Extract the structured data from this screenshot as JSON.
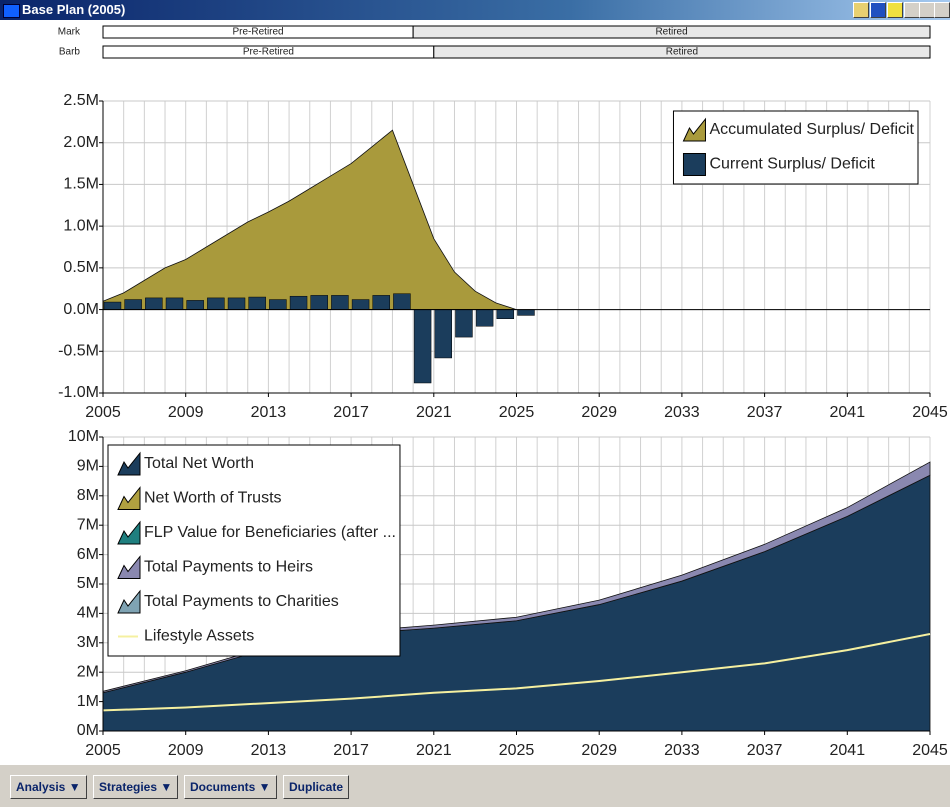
{
  "window": {
    "title": "Base Plan (2005)"
  },
  "timeline": [
    {
      "name": "Mark",
      "segments": [
        {
          "label": "Pre-Retired",
          "start": 2005,
          "end": 2020
        },
        {
          "label": "Retired",
          "start": 2020,
          "end": 2045
        }
      ]
    },
    {
      "name": "Barb",
      "segments": [
        {
          "label": "Pre-Retired",
          "start": 2005,
          "end": 2021
        },
        {
          "label": "Retired",
          "start": 2021,
          "end": 2045
        }
      ]
    }
  ],
  "chart_data": [
    {
      "type": "combo",
      "x": [
        2005,
        2006,
        2007,
        2008,
        2009,
        2010,
        2011,
        2012,
        2013,
        2014,
        2015,
        2016,
        2017,
        2018,
        2019,
        2020,
        2021,
        2022,
        2023,
        2024,
        2025
      ],
      "series": [
        {
          "name": "Accumulated Surplus/ Deficit",
          "type": "area",
          "color": "#a99a3c",
          "values": [
            0.1,
            0.2,
            0.35,
            0.5,
            0.6,
            0.75,
            0.9,
            1.05,
            1.17,
            1.3,
            1.45,
            1.6,
            1.75,
            1.95,
            2.15,
            1.5,
            0.85,
            0.45,
            0.22,
            0.08,
            0.0
          ]
        },
        {
          "name": "Current Surplus/ Deficit",
          "type": "bar",
          "color": "#1b3d5c",
          "values": [
            0.09,
            0.12,
            0.14,
            0.14,
            0.11,
            0.14,
            0.14,
            0.15,
            0.12,
            0.16,
            0.17,
            0.17,
            0.12,
            0.17,
            0.19,
            -0.88,
            -0.58,
            -0.33,
            -0.2,
            -0.11,
            -0.07
          ]
        }
      ],
      "xlim": [
        2005,
        2045
      ],
      "xticks": [
        2005,
        2009,
        2013,
        2017,
        2021,
        2025,
        2029,
        2033,
        2037,
        2041,
        2045
      ],
      "ylim": [
        -1,
        2.5
      ],
      "yticks": [
        {
          "value": -1,
          "label": "-1.0M"
        },
        {
          "value": -0.5,
          "label": "-0.5M"
        },
        {
          "value": 0,
          "label": "0.0M"
        },
        {
          "value": 0.5,
          "label": "0.5M"
        },
        {
          "value": 1,
          "label": "1.0M"
        },
        {
          "value": 1.5,
          "label": "1.5M"
        },
        {
          "value": 2,
          "label": "2.0M"
        },
        {
          "value": 2.5,
          "label": "2.5M"
        }
      ],
      "grid": true,
      "legend": "upper right"
    },
    {
      "type": "combo",
      "x": [
        2005,
        2009,
        2013,
        2017,
        2021,
        2025,
        2029,
        2033,
        2037,
        2041,
        2045
      ],
      "series": [
        {
          "name": "Total Net Worth",
          "type": "area",
          "color": "#1b3d5c",
          "values": [
            1.3,
            2.0,
            2.8,
            3.3,
            3.5,
            3.75,
            4.3,
            5.1,
            6.1,
            7.3,
            8.7
          ]
        },
        {
          "name": "Net Worth of Trusts",
          "type": "area",
          "color": "#b0a040"
        },
        {
          "name": "FLP Value for Beneficiaries (after ...",
          "type": "area",
          "color": "#1f7f7f"
        },
        {
          "name": "Total Payments to Heirs",
          "type": "area",
          "color": "#8a88b0",
          "values": [
            0.05,
            0.05,
            0.07,
            0.08,
            0.1,
            0.12,
            0.15,
            0.2,
            0.25,
            0.3,
            0.45
          ]
        },
        {
          "name": "Total Payments to Charities",
          "type": "area",
          "color": "#7fa3b3"
        },
        {
          "name": "Lifestyle Assets",
          "type": "line",
          "color": "#f5f0a0",
          "values": [
            0.7,
            0.8,
            0.95,
            1.1,
            1.3,
            1.45,
            1.7,
            2.0,
            2.3,
            2.75,
            3.3
          ]
        }
      ],
      "xlim": [
        2005,
        2045
      ],
      "xticks": [
        2005,
        2009,
        2013,
        2017,
        2021,
        2025,
        2029,
        2033,
        2037,
        2041,
        2045
      ],
      "ylim": [
        0,
        10
      ],
      "yticks": [
        {
          "value": 0,
          "label": "0M"
        },
        {
          "value": 1,
          "label": "1M"
        },
        {
          "value": 2,
          "label": "2M"
        },
        {
          "value": 3,
          "label": "3M"
        },
        {
          "value": 4,
          "label": "4M"
        },
        {
          "value": 5,
          "label": "5M"
        },
        {
          "value": 6,
          "label": "6M"
        },
        {
          "value": 7,
          "label": "7M"
        },
        {
          "value": 8,
          "label": "8M"
        },
        {
          "value": 9,
          "label": "9M"
        },
        {
          "value": 10,
          "label": "10M"
        }
      ],
      "grid": true,
      "legend": "upper left"
    }
  ],
  "toolbar": [
    "Analysis ▼",
    "Strategies ▼",
    "Documents ▼",
    "Duplicate"
  ]
}
